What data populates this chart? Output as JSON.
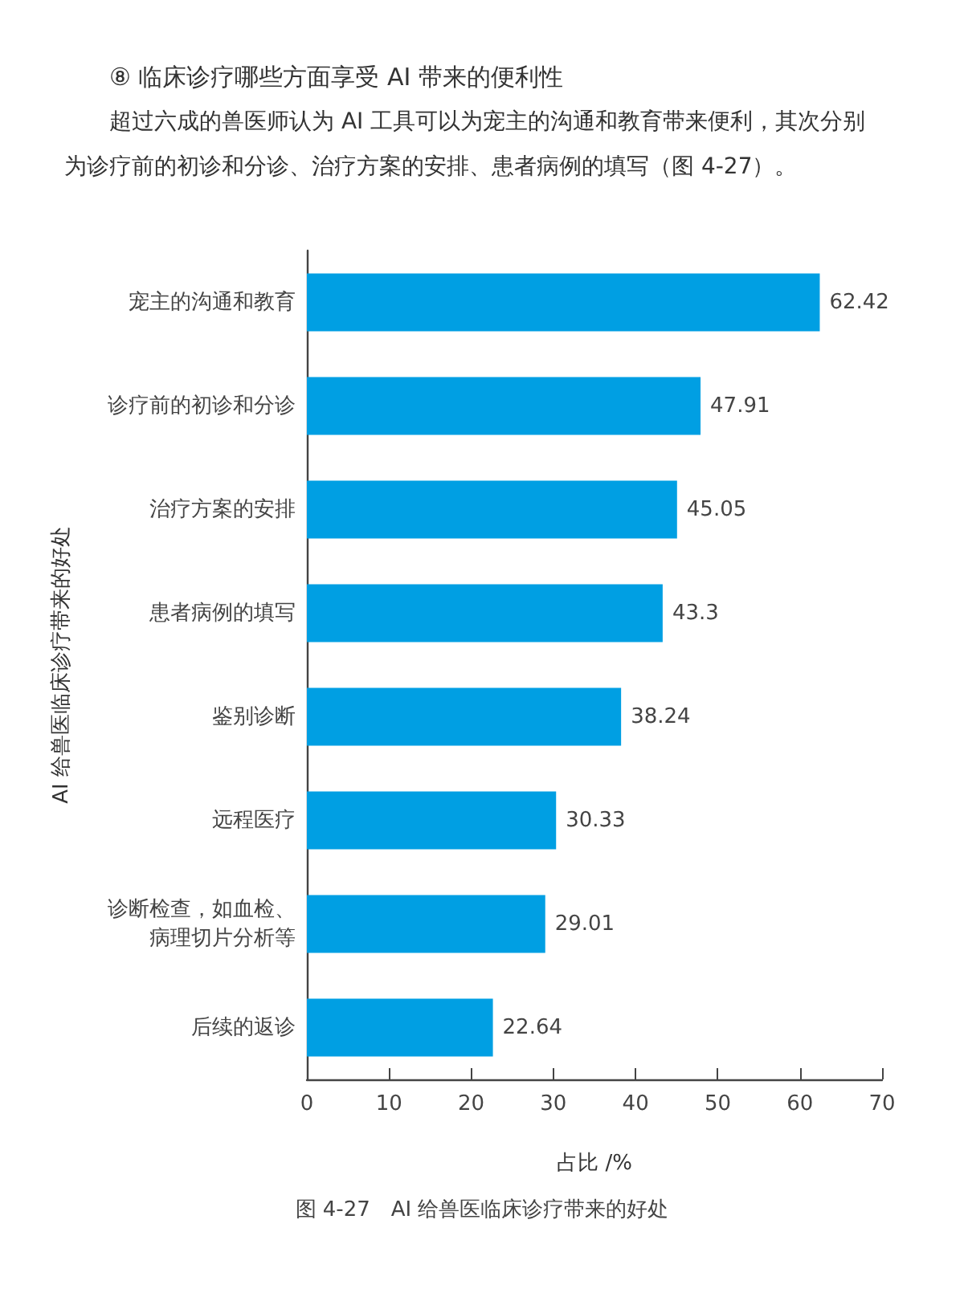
{
  "chart_data": {
    "type": "bar",
    "orientation": "horizontal",
    "title": "⑧ 临床诊疗哪些方面享受 AI 带来的便利性",
    "subtitle": "超过六成的兽医师认为 AI 工具可以为宠主的沟通和教育带来便利，其次分别为诊疗前的初诊和分诊、治疗方案的安排、患者病例的填写（图 4-27）。",
    "xlabel": "占比 /%",
    "ylabel": "AI 给兽医临床诊疗带来的好处",
    "annotations": [
      "图 4-27　AI 给兽医临床诊疗带来的好处"
    ],
    "categories": [
      "宠主的沟通和教育",
      "诊疗前的初诊和分诊",
      "治疗方案的安排",
      "患者病例的填写",
      "鉴别诊断",
      "远程医疗",
      "诊断检查，如血检、病理切片分析等",
      "后续的返诊"
    ],
    "values": [
      62.42,
      47.91,
      45.05,
      43.3,
      38.24,
      30.33,
      29.01,
      22.64
    ],
    "color": "#009fe3",
    "xlim": [
      0,
      70
    ],
    "xticks": [
      0,
      10,
      20,
      30,
      40,
      50,
      60,
      70
    ],
    "data_labels": true
  }
}
